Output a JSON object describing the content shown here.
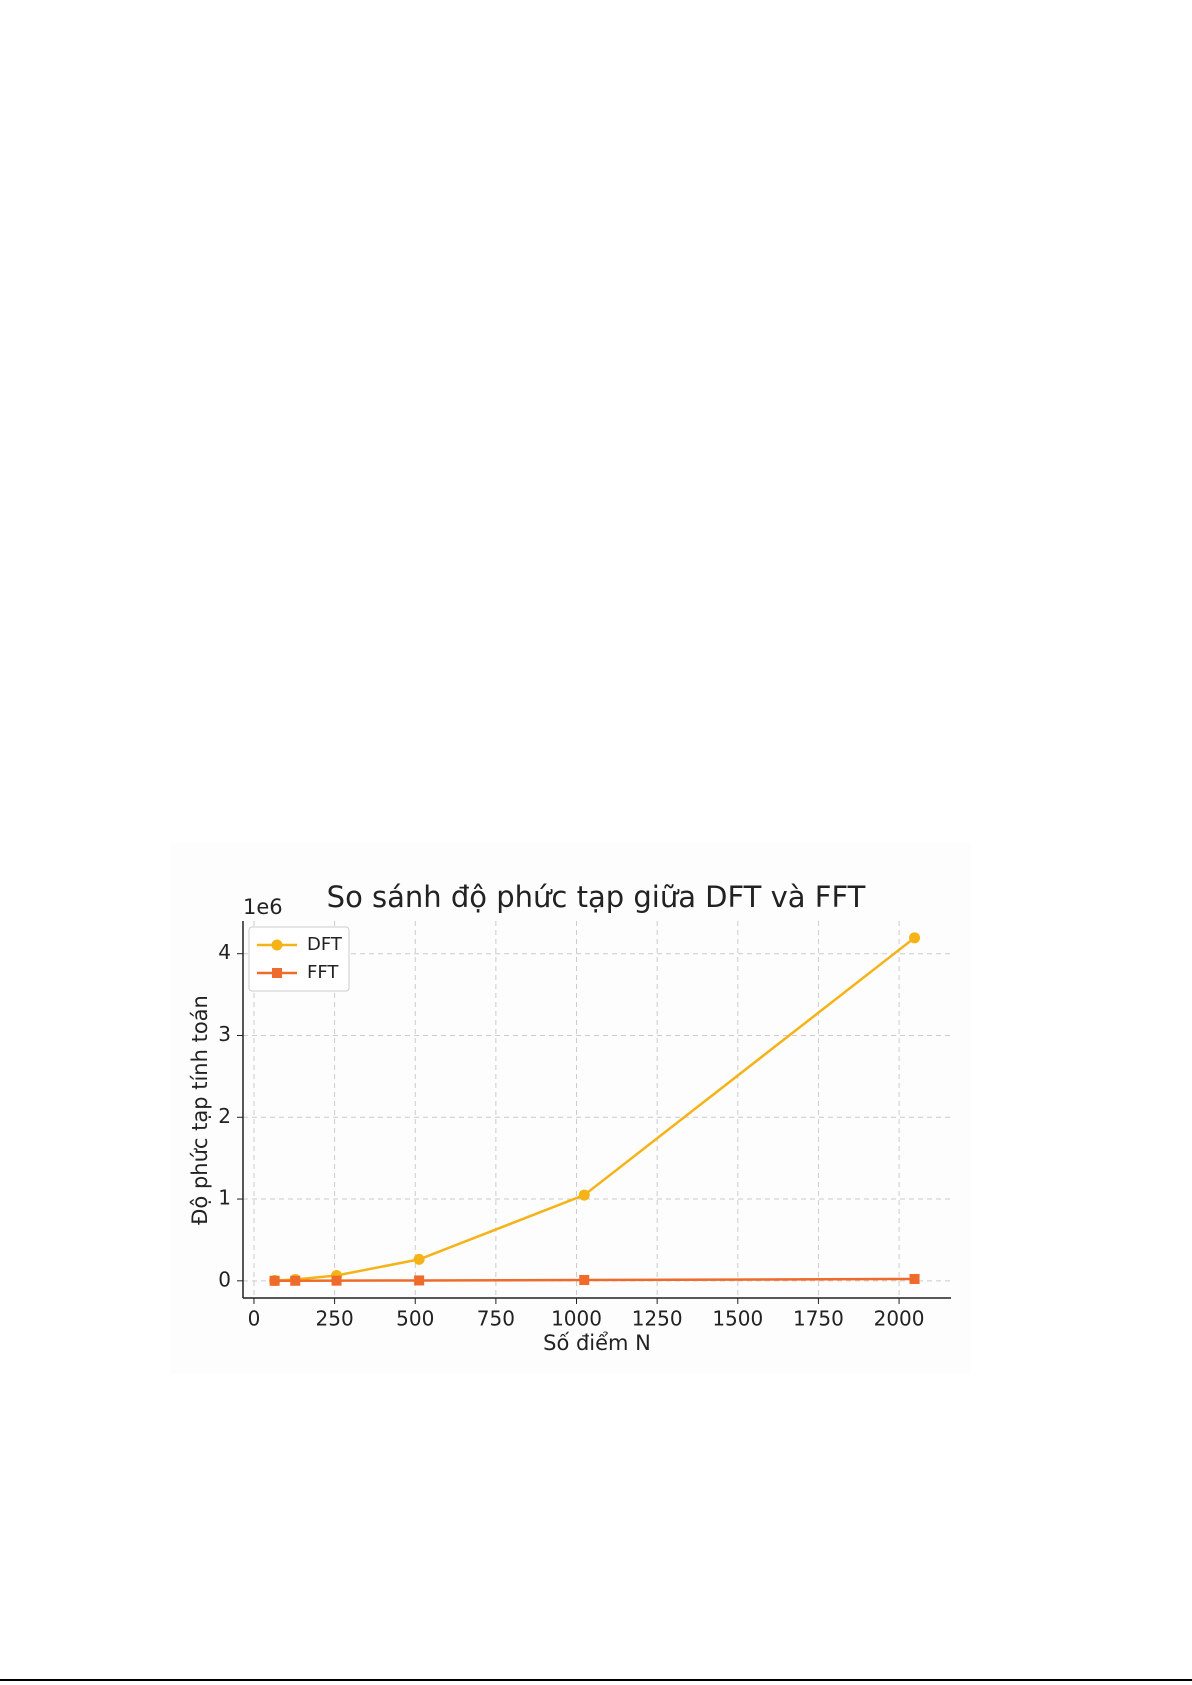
{
  "chart_data": {
    "type": "line",
    "title": "So sánh độ phức tạp giữa DFT và FFT",
    "x_label": "Số điểm N",
    "y_label": "Độ phức tạp tính toán",
    "y_offset_label": "1e6",
    "x": [
      64,
      128,
      256,
      512,
      1024,
      2048
    ],
    "series": [
      {
        "name": "DFT",
        "color": "#f5b318",
        "marker": "circle",
        "values": [
          4096,
          16384,
          65536,
          262144,
          1048576,
          4194304
        ]
      },
      {
        "name": "FFT",
        "color": "#ef6b2b",
        "marker": "square",
        "values": [
          384,
          896,
          2048,
          4608,
          10240,
          22528
        ]
      }
    ],
    "xlim": [
      -34,
      2161
    ],
    "ylim": [
      -210000,
      4400000
    ],
    "xticks": [
      0,
      250,
      500,
      750,
      1000,
      1250,
      1500,
      1750,
      2000
    ],
    "yticks": [
      {
        "value": 0,
        "label": "0"
      },
      {
        "value": 1000000,
        "label": "1"
      },
      {
        "value": 2000000,
        "label": "2"
      },
      {
        "value": 3000000,
        "label": "3"
      },
      {
        "value": 4000000,
        "label": "4"
      }
    ],
    "grid": true,
    "legend": "upper left"
  }
}
